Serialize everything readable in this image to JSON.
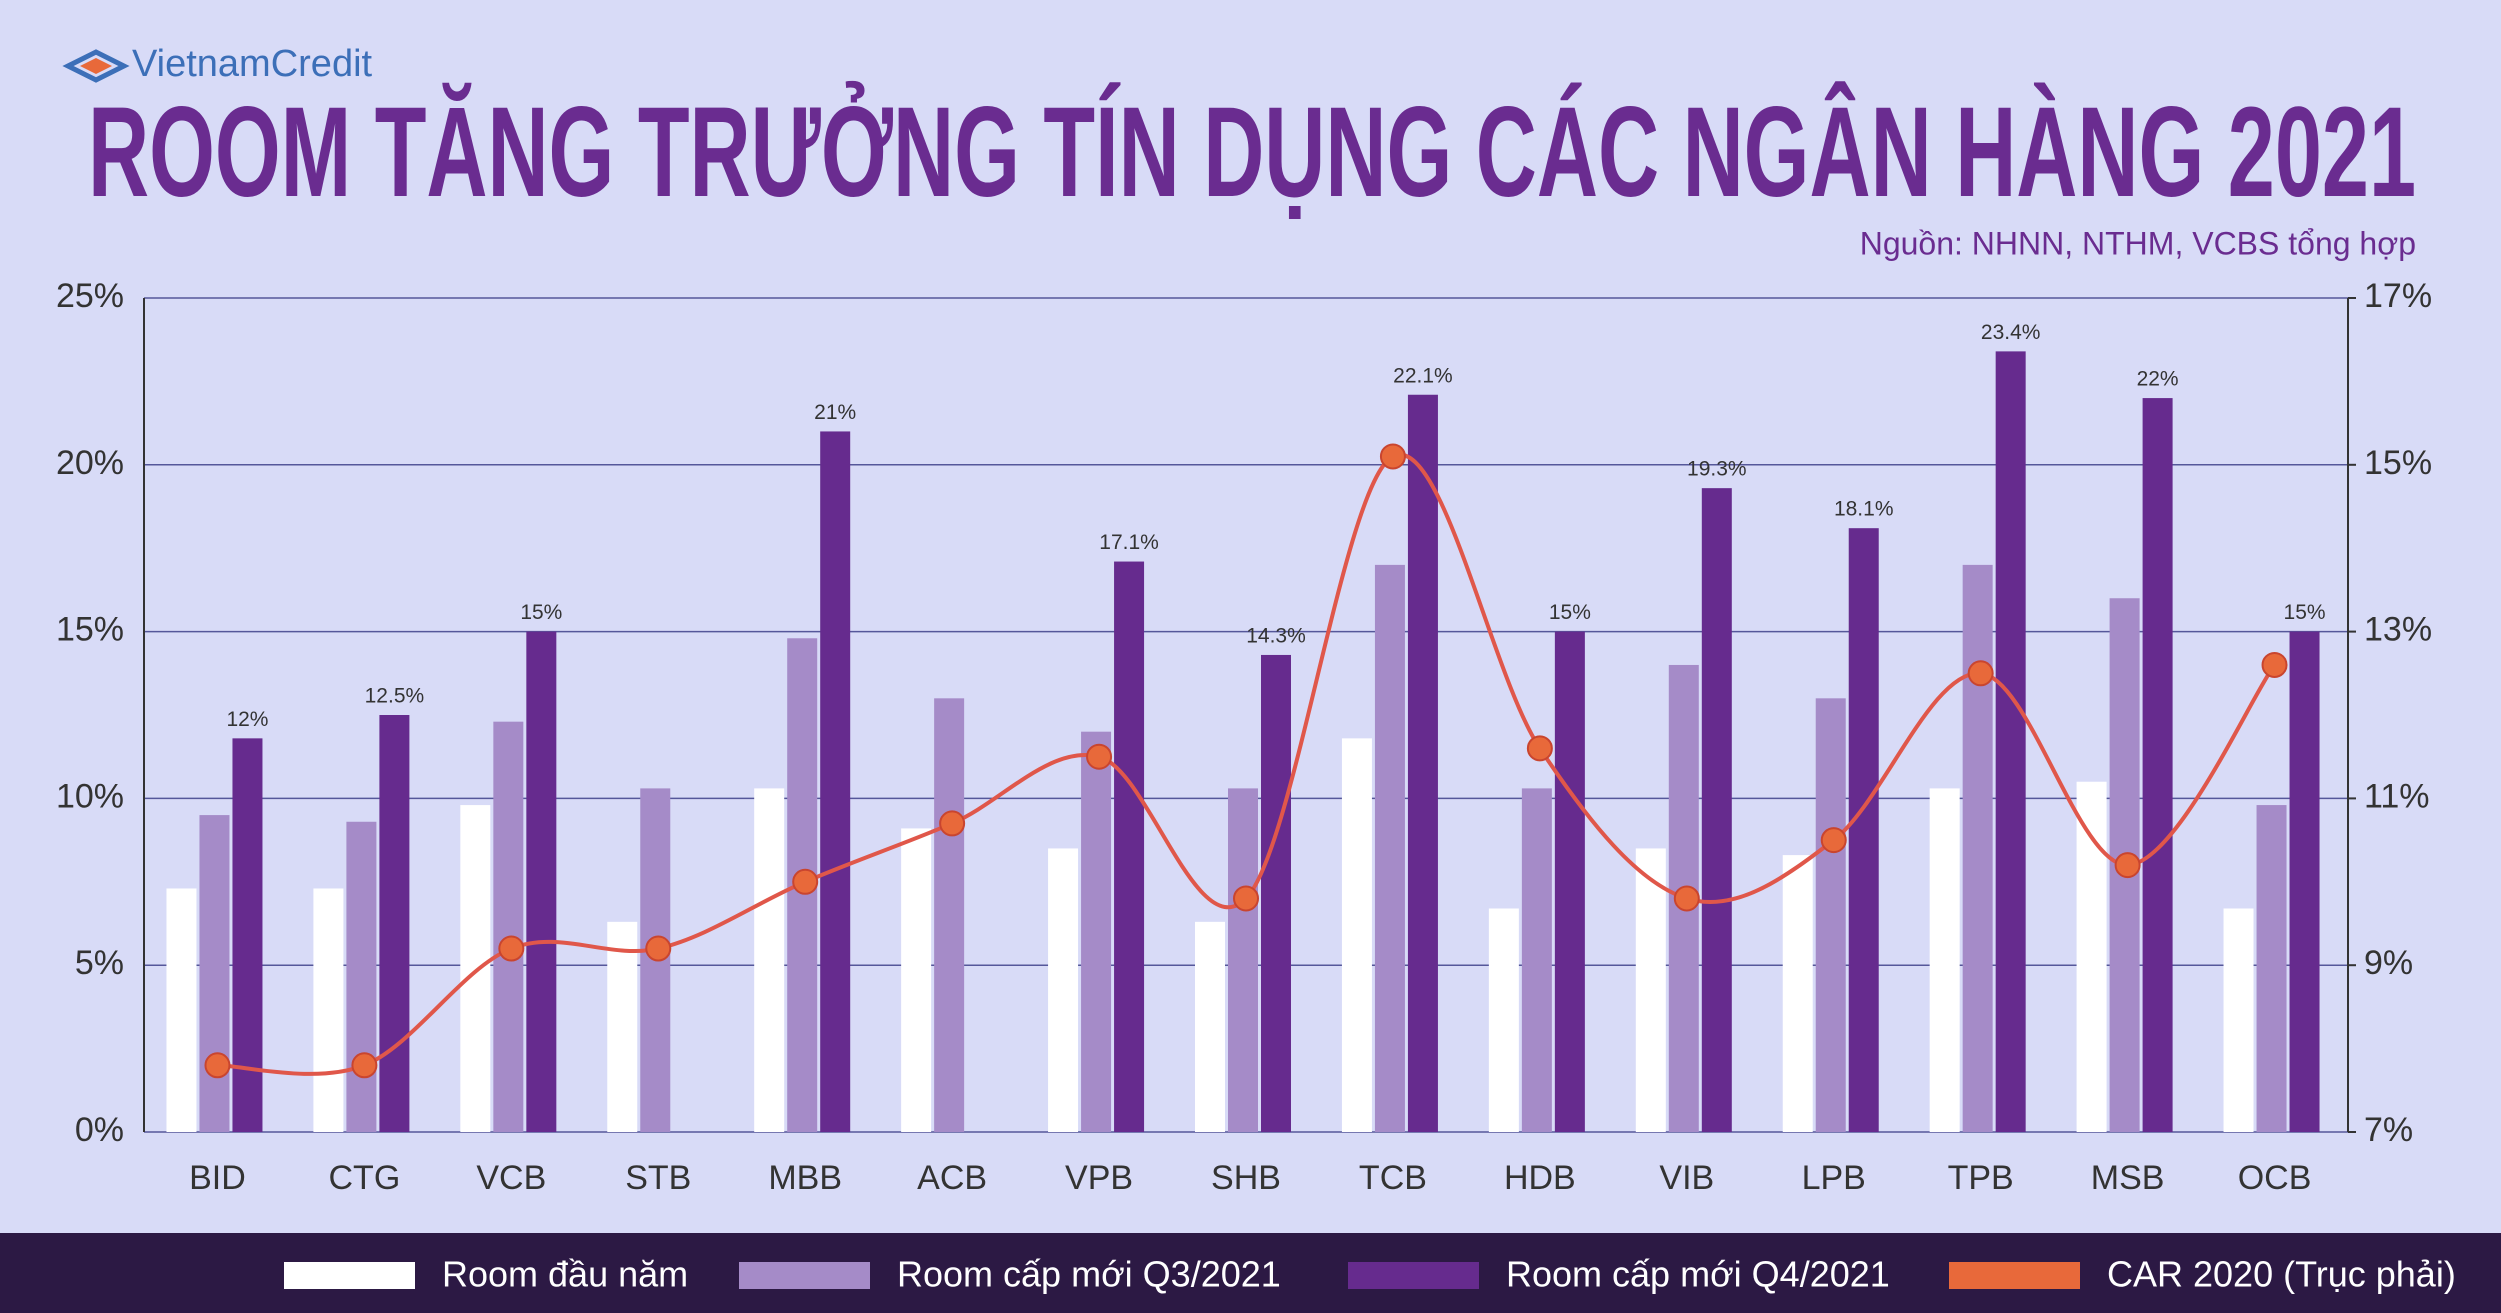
{
  "chart_data": {
    "type": "bar",
    "brand": "VietnamCredit",
    "title": "ROOM TĂNG TRƯỞNG TÍN DỤNG CÁC NGÂN HÀNG 2021",
    "subtitle": "Nguồn: NHNN, NTHM, VCBS tổng hợp",
    "categories": [
      "BID",
      "CTG",
      "VCB",
      "STB",
      "MBB",
      "ACB",
      "VPB",
      "SHB",
      "TCB",
      "HDB",
      "VIB",
      "LPB",
      "TPB",
      "MSB",
      "OCB"
    ],
    "series": [
      {
        "name": "Room đầu năm",
        "color": "#ffffff",
        "values": [
          7.3,
          7.3,
          9.8,
          6.3,
          10.3,
          9.1,
          8.5,
          6.3,
          11.8,
          6.7,
          8.5,
          8.3,
          10.3,
          10.5,
          6.7
        ]
      },
      {
        "name": "Room cấp mới Q3/2021",
        "color": "#a58bc8",
        "values": [
          9.5,
          9.3,
          12.3,
          10.3,
          14.8,
          13,
          12,
          10.3,
          17,
          10.3,
          14,
          13,
          17,
          16,
          9.8
        ]
      },
      {
        "name": "Room cấp mới Q4/2021",
        "color": "#662b8e",
        "values": [
          11.8,
          12.5,
          15,
          null,
          21,
          null,
          17.1,
          14.3,
          22.1,
          15,
          19.3,
          18.1,
          23.4,
          22,
          15
        ],
        "value_labels": [
          "12%",
          "12.5%",
          "15%",
          null,
          "21%",
          null,
          "17.1%",
          "14.3%",
          "22.1%",
          "15%",
          "19.3%",
          "18.1%",
          "23.4%",
          "22%",
          "15%"
        ]
      },
      {
        "name": "CAR 2020 (Trục phải)",
        "color": "#e8693a",
        "type": "line",
        "axis": "y2",
        "values": [
          7.8,
          7.8,
          9.2,
          9.2,
          10,
          10.7,
          11.5,
          9.8,
          15.1,
          11.6,
          9.8,
          10.5,
          12.5,
          10.2,
          12.6
        ]
      }
    ],
    "ylim": [
      0,
      25
    ],
    "yticks": [
      {
        "value": 0,
        "label": "0%"
      },
      {
        "value": 5,
        "label": "5%"
      },
      {
        "value": 10,
        "label": "10%"
      },
      {
        "value": 15,
        "label": "15%"
      },
      {
        "value": 20,
        "label": "20%"
      },
      {
        "value": 25,
        "label": "25%"
      }
    ],
    "y2lim": [
      7,
      17
    ],
    "y2ticks": [
      {
        "value": 7,
        "label": "7%"
      },
      {
        "value": 9,
        "label": "9%"
      },
      {
        "value": 11,
        "label": "11%"
      },
      {
        "value": 13,
        "label": "13%"
      },
      {
        "value": 15,
        "label": "15%"
      },
      {
        "value": 17,
        "label": "17%"
      }
    ],
    "grid": true
  }
}
